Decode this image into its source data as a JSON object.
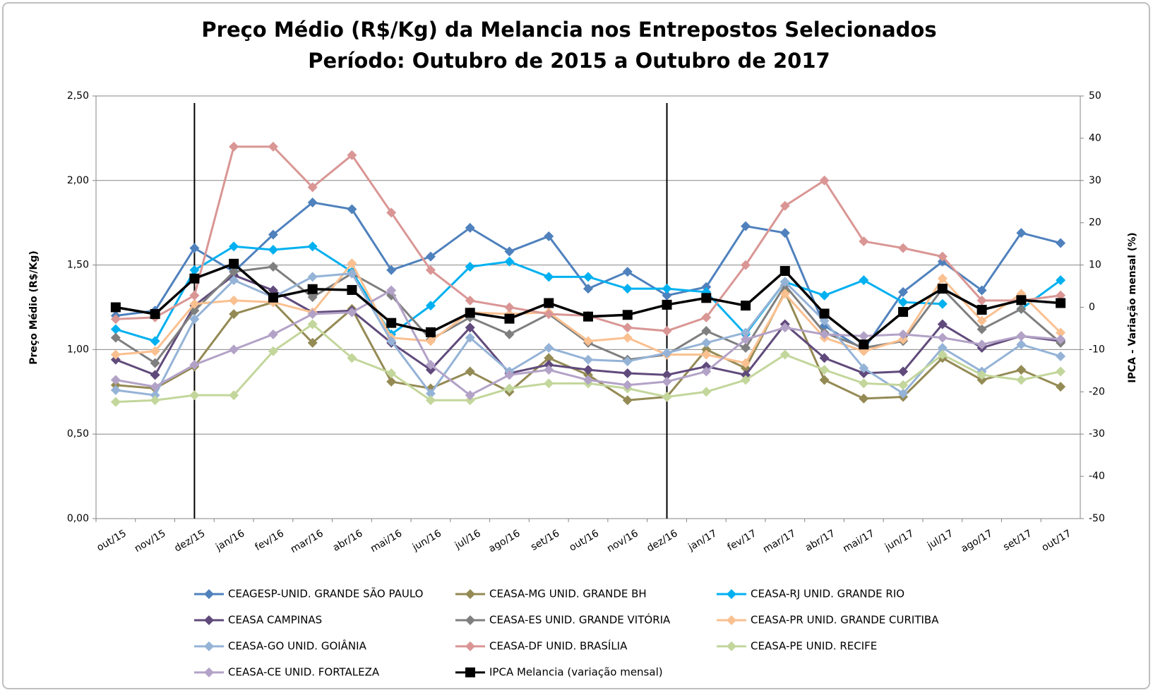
{
  "chart_data": {
    "type": "line",
    "title": "Preço Médio (R$/Kg) da Melancia nos Entrepostos Selecionados",
    "subtitle": "Período: Outubro de 2015 a Outubro de 2017",
    "y_label": "Preço Médio (R$/Kg)",
    "y2_label": "IPCA - Variação mensal (%)",
    "categories": [
      "out/15",
      "nov/15",
      "dez/15",
      "jan/16",
      "fev/16",
      "mar/16",
      "abr/16",
      "mai/16",
      "jun/16",
      "jul/16",
      "ago/16",
      "set/16",
      "out/16",
      "nov/16",
      "dez/16",
      "jan/17",
      "fev/17",
      "mar/17",
      "abr/17",
      "mai/17",
      "jun/17",
      "jul/17",
      "ago/17",
      "set/17",
      "out/17"
    ],
    "vertical_lines": [
      "dez/15",
      "dez/16"
    ],
    "ylim": [
      0,
      2.5
    ],
    "yticks": [
      {
        "value": 0,
        "label": "0,00"
      },
      {
        "value": 0.5,
        "label": "0,50"
      },
      {
        "value": 1,
        "label": "1,00"
      },
      {
        "value": 1.5,
        "label": "1,50"
      },
      {
        "value": 2,
        "label": "2,00"
      },
      {
        "value": 2.5,
        "label": "2,50"
      }
    ],
    "y2lim": [
      -50,
      50
    ],
    "y2ticks": [
      -50,
      -40,
      -30,
      -20,
      -10,
      0,
      10,
      20,
      30,
      40,
      50
    ],
    "grid": true,
    "legend": "bottom",
    "series": [
      {
        "name": "CEAGESP-UNID.  GRANDE SÃO PAULO",
        "color": "#4f81bd",
        "marker": "diamond",
        "values": [
          1.2,
          1.23,
          1.6,
          1.46,
          1.68,
          1.87,
          1.83,
          1.47,
          1.55,
          1.72,
          1.58,
          1.67,
          1.36,
          1.46,
          1.32,
          1.37,
          1.73,
          1.69,
          1.14,
          1.0,
          1.34,
          1.52,
          1.35,
          1.69,
          1.63
        ]
      },
      {
        "name": "CEASA-MG UNID. GRANDE BH",
        "color": "#948a54",
        "marker": "diamond",
        "values": [
          0.79,
          0.77,
          0.9,
          1.21,
          1.28,
          1.04,
          1.24,
          0.81,
          0.77,
          0.87,
          0.75,
          0.95,
          0.85,
          0.7,
          0.72,
          1.0,
          0.89,
          1.34,
          0.82,
          0.71,
          0.72,
          0.95,
          0.82,
          0.88,
          0.78
        ]
      },
      {
        "name": "CEASA-RJ UNID. GRANDE RIO",
        "color": "#00b0f0",
        "marker": "diamond",
        "values": [
          1.12,
          1.05,
          1.47,
          1.61,
          1.59,
          1.61,
          1.46,
          1.09,
          1.26,
          1.49,
          1.52,
          1.43,
          1.43,
          1.36,
          1.36,
          1.34,
          1.09,
          1.4,
          1.32,
          1.41,
          1.28,
          1.27,
          null,
          1.24,
          1.41
        ]
      },
      {
        "name": "CEASA CAMPINAS",
        "color": "#604a7b",
        "marker": "diamond",
        "values": [
          0.94,
          0.85,
          1.26,
          1.44,
          1.35,
          1.22,
          1.23,
          1.04,
          0.88,
          1.13,
          0.86,
          0.91,
          0.88,
          0.86,
          0.85,
          0.9,
          0.85,
          1.15,
          0.95,
          0.86,
          0.87,
          1.15,
          1.01,
          1.08,
          1.05
        ]
      },
      {
        "name": "CEASA-ES UNID. GRANDE VITÓRIA",
        "color": "#7f7f7f",
        "marker": "diamond",
        "values": [
          1.07,
          0.92,
          1.23,
          1.46,
          1.49,
          1.31,
          1.45,
          1.32,
          1.06,
          1.19,
          1.09,
          1.21,
          1.04,
          0.94,
          0.97,
          1.11,
          1.01,
          1.38,
          1.1,
          1.01,
          1.05,
          1.36,
          1.12,
          1.24,
          1.04
        ]
      },
      {
        "name": "CEASA-PR UNID. GRANDE CURITIBA",
        "color": "#fac090",
        "marker": "diamond",
        "values": [
          0.97,
          0.99,
          1.27,
          1.29,
          1.28,
          1.22,
          1.51,
          1.07,
          1.05,
          1.22,
          1.21,
          1.22,
          1.05,
          1.07,
          0.97,
          0.97,
          0.92,
          1.33,
          1.07,
          0.99,
          1.06,
          1.42,
          1.17,
          1.33,
          1.1
        ]
      },
      {
        "name": "CEASA-GO UNID. GOIÂNIA",
        "color": "#95b3d7",
        "marker": "diamond",
        "values": [
          0.76,
          0.73,
          1.18,
          1.41,
          1.31,
          1.43,
          1.45,
          1.05,
          0.74,
          1.07,
          0.87,
          1.01,
          0.94,
          0.93,
          0.98,
          1.04,
          1.1,
          1.4,
          1.17,
          0.89,
          0.74,
          1.01,
          0.87,
          1.03,
          0.96
        ]
      },
      {
        "name": "CEASA-DF UNID. BRASÍLIA",
        "color": "#d99694",
        "marker": "diamond",
        "values": [
          1.18,
          1.19,
          1.32,
          2.2,
          2.2,
          1.96,
          2.15,
          1.81,
          1.47,
          1.29,
          1.25,
          1.21,
          1.2,
          1.13,
          1.11,
          1.19,
          1.5,
          1.85,
          2.0,
          1.64,
          1.6,
          1.55,
          1.29,
          1.29,
          1.32
        ]
      },
      {
        "name": "CEASA-PE UNID. RECIFE",
        "color": "#c3d69b",
        "marker": "diamond",
        "values": [
          0.69,
          0.7,
          0.73,
          0.73,
          0.99,
          1.15,
          0.95,
          0.86,
          0.7,
          0.7,
          0.77,
          0.8,
          0.8,
          0.77,
          0.72,
          0.75,
          0.82,
          0.97,
          0.88,
          0.8,
          0.79,
          0.97,
          0.85,
          0.82,
          0.87
        ]
      },
      {
        "name": "CEASA-CE UNID. FORTALEZA",
        "color": "#b3a2c7",
        "marker": "diamond",
        "values": [
          0.82,
          0.78,
          0.91,
          1.0,
          1.09,
          1.21,
          1.22,
          1.35,
          0.91,
          0.73,
          0.85,
          0.88,
          0.82,
          0.79,
          0.81,
          0.87,
          1.06,
          1.13,
          1.09,
          1.08,
          1.09,
          1.07,
          1.03,
          1.08,
          1.06
        ]
      },
      {
        "name": "IPCA Melancia (variação mensal)",
        "color": "#000000",
        "marker": "square",
        "axis": "y2",
        "values": [
          0,
          -1.6,
          6.8,
          10.3,
          2.3,
          4.3,
          4.1,
          -3.7,
          -5.9,
          -1.3,
          -2.7,
          1.0,
          -2.2,
          -1.8,
          0.6,
          2.2,
          0.4,
          8.6,
          -1.5,
          -8.8,
          -1.1,
          4.4,
          -0.6,
          1.7,
          1.0
        ]
      }
    ]
  }
}
